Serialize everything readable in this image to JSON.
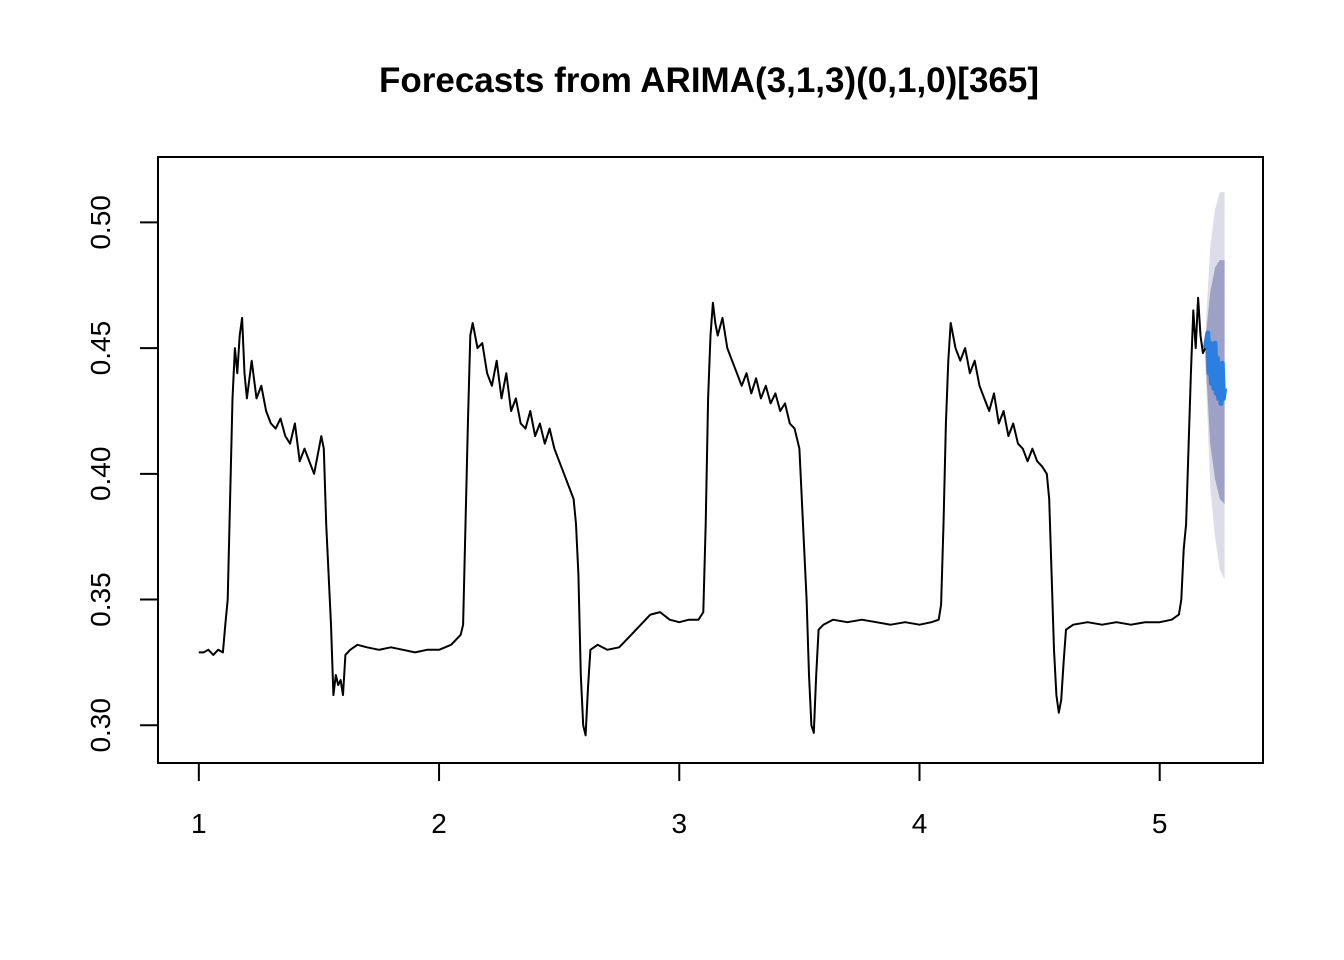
{
  "chart_data": {
    "type": "line",
    "title": "Forecasts from ARIMA(3,1,3)(0,1,0)[365]",
    "xlabel": "",
    "ylabel": "",
    "xlim": [
      0.83,
      5.43
    ],
    "ylim": [
      0.285,
      0.526
    ],
    "x_ticks": [
      1,
      2,
      3,
      4,
      5
    ],
    "x_tick_labels": [
      "1",
      "2",
      "3",
      "4",
      "5"
    ],
    "y_ticks": [
      0.3,
      0.35,
      0.4,
      0.45,
      0.5
    ],
    "y_tick_labels": [
      "0.30",
      "0.35",
      "0.40",
      "0.45",
      "0.50"
    ],
    "grid": false,
    "legend": "none",
    "colors": {
      "history": "#000000",
      "forecast": "#2a7fe0",
      "interval_95": "#dcdde8",
      "interval_80": "#9ea1c6"
    },
    "series": [
      {
        "role": "history",
        "points": [
          [
            1.0,
            0.329
          ],
          [
            1.02,
            0.329
          ],
          [
            1.04,
            0.33
          ],
          [
            1.06,
            0.328
          ],
          [
            1.08,
            0.33
          ],
          [
            1.1,
            0.329
          ],
          [
            1.11,
            0.34
          ],
          [
            1.12,
            0.35
          ],
          [
            1.13,
            0.39
          ],
          [
            1.14,
            0.43
          ],
          [
            1.15,
            0.45
          ],
          [
            1.16,
            0.44
          ],
          [
            1.17,
            0.455
          ],
          [
            1.18,
            0.462
          ],
          [
            1.19,
            0.44
          ],
          [
            1.2,
            0.43
          ],
          [
            1.22,
            0.445
          ],
          [
            1.24,
            0.43
          ],
          [
            1.26,
            0.435
          ],
          [
            1.28,
            0.425
          ],
          [
            1.3,
            0.42
          ],
          [
            1.32,
            0.418
          ],
          [
            1.34,
            0.422
          ],
          [
            1.36,
            0.415
          ],
          [
            1.38,
            0.412
          ],
          [
            1.4,
            0.42
          ],
          [
            1.42,
            0.405
          ],
          [
            1.44,
            0.41
          ],
          [
            1.46,
            0.405
          ],
          [
            1.48,
            0.4
          ],
          [
            1.5,
            0.41
          ],
          [
            1.51,
            0.415
          ],
          [
            1.52,
            0.41
          ],
          [
            1.53,
            0.38
          ],
          [
            1.54,
            0.36
          ],
          [
            1.55,
            0.34
          ],
          [
            1.56,
            0.312
          ],
          [
            1.57,
            0.32
          ],
          [
            1.58,
            0.316
          ],
          [
            1.59,
            0.318
          ],
          [
            1.6,
            0.312
          ],
          [
            1.61,
            0.328
          ],
          [
            1.63,
            0.33
          ],
          [
            1.66,
            0.332
          ],
          [
            1.7,
            0.331
          ],
          [
            1.75,
            0.33
          ],
          [
            1.8,
            0.331
          ],
          [
            1.85,
            0.33
          ],
          [
            1.9,
            0.329
          ],
          [
            1.95,
            0.33
          ],
          [
            2.0,
            0.33
          ],
          [
            2.05,
            0.332
          ],
          [
            2.09,
            0.336
          ],
          [
            2.1,
            0.34
          ],
          [
            2.11,
            0.38
          ],
          [
            2.12,
            0.42
          ],
          [
            2.13,
            0.455
          ],
          [
            2.14,
            0.46
          ],
          [
            2.15,
            0.455
          ],
          [
            2.16,
            0.45
          ],
          [
            2.18,
            0.452
          ],
          [
            2.2,
            0.44
          ],
          [
            2.22,
            0.435
          ],
          [
            2.24,
            0.445
          ],
          [
            2.26,
            0.43
          ],
          [
            2.28,
            0.44
          ],
          [
            2.3,
            0.425
          ],
          [
            2.32,
            0.43
          ],
          [
            2.34,
            0.42
          ],
          [
            2.36,
            0.418
          ],
          [
            2.38,
            0.425
          ],
          [
            2.4,
            0.415
          ],
          [
            2.42,
            0.42
          ],
          [
            2.44,
            0.412
          ],
          [
            2.46,
            0.418
          ],
          [
            2.48,
            0.41
          ],
          [
            2.5,
            0.405
          ],
          [
            2.52,
            0.4
          ],
          [
            2.54,
            0.395
          ],
          [
            2.56,
            0.39
          ],
          [
            2.57,
            0.38
          ],
          [
            2.58,
            0.36
          ],
          [
            2.59,
            0.32
          ],
          [
            2.6,
            0.3
          ],
          [
            2.61,
            0.296
          ],
          [
            2.62,
            0.315
          ],
          [
            2.63,
            0.33
          ],
          [
            2.66,
            0.332
          ],
          [
            2.7,
            0.33
          ],
          [
            2.75,
            0.331
          ],
          [
            2.8,
            0.336
          ],
          [
            2.84,
            0.34
          ],
          [
            2.88,
            0.344
          ],
          [
            2.92,
            0.345
          ],
          [
            2.96,
            0.342
          ],
          [
            3.0,
            0.341
          ],
          [
            3.04,
            0.342
          ],
          [
            3.08,
            0.342
          ],
          [
            3.1,
            0.345
          ],
          [
            3.11,
            0.38
          ],
          [
            3.12,
            0.43
          ],
          [
            3.13,
            0.455
          ],
          [
            3.14,
            0.468
          ],
          [
            3.15,
            0.46
          ],
          [
            3.16,
            0.455
          ],
          [
            3.18,
            0.462
          ],
          [
            3.2,
            0.45
          ],
          [
            3.22,
            0.445
          ],
          [
            3.24,
            0.44
          ],
          [
            3.26,
            0.435
          ],
          [
            3.28,
            0.44
          ],
          [
            3.3,
            0.432
          ],
          [
            3.32,
            0.438
          ],
          [
            3.34,
            0.43
          ],
          [
            3.36,
            0.435
          ],
          [
            3.38,
            0.428
          ],
          [
            3.4,
            0.432
          ],
          [
            3.42,
            0.425
          ],
          [
            3.44,
            0.428
          ],
          [
            3.46,
            0.42
          ],
          [
            3.48,
            0.418
          ],
          [
            3.5,
            0.41
          ],
          [
            3.51,
            0.39
          ],
          [
            3.52,
            0.37
          ],
          [
            3.53,
            0.35
          ],
          [
            3.54,
            0.32
          ],
          [
            3.55,
            0.3
          ],
          [
            3.56,
            0.297
          ],
          [
            3.57,
            0.32
          ],
          [
            3.58,
            0.338
          ],
          [
            3.6,
            0.34
          ],
          [
            3.64,
            0.342
          ],
          [
            3.7,
            0.341
          ],
          [
            3.76,
            0.342
          ],
          [
            3.82,
            0.341
          ],
          [
            3.88,
            0.34
          ],
          [
            3.94,
            0.341
          ],
          [
            4.0,
            0.34
          ],
          [
            4.05,
            0.341
          ],
          [
            4.08,
            0.342
          ],
          [
            4.09,
            0.348
          ],
          [
            4.1,
            0.38
          ],
          [
            4.11,
            0.42
          ],
          [
            4.12,
            0.445
          ],
          [
            4.13,
            0.46
          ],
          [
            4.14,
            0.455
          ],
          [
            4.15,
            0.45
          ],
          [
            4.17,
            0.445
          ],
          [
            4.19,
            0.45
          ],
          [
            4.21,
            0.44
          ],
          [
            4.23,
            0.445
          ],
          [
            4.25,
            0.435
          ],
          [
            4.27,
            0.43
          ],
          [
            4.29,
            0.425
          ],
          [
            4.31,
            0.432
          ],
          [
            4.33,
            0.42
          ],
          [
            4.35,
            0.425
          ],
          [
            4.37,
            0.415
          ],
          [
            4.39,
            0.42
          ],
          [
            4.41,
            0.412
          ],
          [
            4.43,
            0.41
          ],
          [
            4.45,
            0.405
          ],
          [
            4.47,
            0.41
          ],
          [
            4.49,
            0.405
          ],
          [
            4.51,
            0.403
          ],
          [
            4.53,
            0.4
          ],
          [
            4.54,
            0.39
          ],
          [
            4.55,
            0.36
          ],
          [
            4.56,
            0.33
          ],
          [
            4.57,
            0.312
          ],
          [
            4.58,
            0.305
          ],
          [
            4.59,
            0.31
          ],
          [
            4.6,
            0.325
          ],
          [
            4.61,
            0.338
          ],
          [
            4.64,
            0.34
          ],
          [
            4.7,
            0.341
          ],
          [
            4.76,
            0.34
          ],
          [
            4.82,
            0.341
          ],
          [
            4.88,
            0.34
          ],
          [
            4.94,
            0.341
          ],
          [
            5.0,
            0.341
          ],
          [
            5.05,
            0.342
          ],
          [
            5.08,
            0.344
          ],
          [
            5.09,
            0.35
          ],
          [
            5.1,
            0.37
          ],
          [
            5.11,
            0.38
          ],
          [
            5.12,
            0.41
          ],
          [
            5.13,
            0.44
          ],
          [
            5.14,
            0.465
          ],
          [
            5.15,
            0.45
          ],
          [
            5.16,
            0.47
          ],
          [
            5.17,
            0.455
          ],
          [
            5.18,
            0.448
          ],
          [
            5.19,
            0.45
          ]
        ]
      },
      {
        "role": "forecast",
        "points": [
          [
            5.19,
            0.45
          ],
          [
            5.2,
            0.456
          ],
          [
            5.205,
            0.44
          ],
          [
            5.21,
            0.452
          ],
          [
            5.215,
            0.436
          ],
          [
            5.22,
            0.448
          ],
          [
            5.225,
            0.434
          ],
          [
            5.23,
            0.452
          ],
          [
            5.235,
            0.432
          ],
          [
            5.24,
            0.446
          ],
          [
            5.245,
            0.43
          ],
          [
            5.25,
            0.44
          ],
          [
            5.255,
            0.428
          ],
          [
            5.26,
            0.444
          ],
          [
            5.265,
            0.43
          ],
          [
            5.27,
            0.434
          ]
        ]
      }
    ],
    "interval_95": {
      "x": [
        5.19,
        5.21,
        5.23,
        5.25,
        5.27
      ],
      "lower": [
        0.445,
        0.395,
        0.375,
        0.362,
        0.358
      ],
      "upper": [
        0.455,
        0.49,
        0.505,
        0.512,
        0.512
      ]
    },
    "interval_80": {
      "x": [
        5.19,
        5.21,
        5.23,
        5.25,
        5.27
      ],
      "lower": [
        0.447,
        0.412,
        0.398,
        0.39,
        0.388
      ],
      "upper": [
        0.453,
        0.472,
        0.482,
        0.485,
        0.485
      ]
    }
  }
}
